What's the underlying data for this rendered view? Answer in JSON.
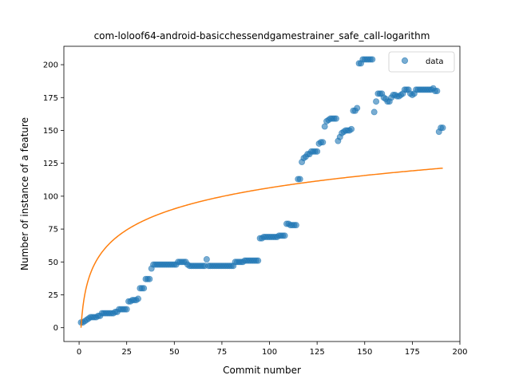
{
  "chart_data": {
    "type": "scatter",
    "title": "com-loloof64-android-basicchessendgamestrainer_safe_call-logarithm",
    "xlabel": "Commit number",
    "ylabel": "Number of instance of a feature",
    "xlim": [
      -8,
      200
    ],
    "ylim": [
      -10.5,
      214
    ],
    "xticks": [
      0,
      25,
      50,
      75,
      100,
      125,
      150,
      175,
      200
    ],
    "yticks": [
      0,
      25,
      50,
      75,
      100,
      125,
      150,
      175,
      200
    ],
    "legend": {
      "position": "top-right",
      "entries": [
        "data"
      ]
    },
    "colors": {
      "scatter": "#1f77b4",
      "fit": "#ff7f0e"
    },
    "series": [
      {
        "name": "data",
        "kind": "scatter",
        "x": [
          1,
          2,
          3,
          4,
          5,
          6,
          7,
          8,
          9,
          10,
          11,
          12,
          13,
          14,
          15,
          16,
          17,
          18,
          19,
          20,
          21,
          22,
          23,
          24,
          25,
          26,
          27,
          28,
          29,
          30,
          31,
          32,
          33,
          34,
          35,
          36,
          37,
          38,
          39,
          40,
          41,
          42,
          43,
          44,
          45,
          46,
          47,
          48,
          49,
          50,
          51,
          52,
          53,
          54,
          55,
          56,
          57,
          58,
          59,
          60,
          61,
          62,
          63,
          64,
          65,
          66,
          67,
          68,
          69,
          70,
          71,
          72,
          73,
          74,
          75,
          76,
          77,
          78,
          79,
          80,
          81,
          82,
          83,
          84,
          85,
          86,
          87,
          88,
          89,
          90,
          91,
          92,
          93,
          94,
          95,
          96,
          97,
          98,
          99,
          100,
          101,
          102,
          103,
          104,
          105,
          106,
          107,
          108,
          109,
          110,
          111,
          112,
          113,
          114,
          115,
          116,
          117,
          118,
          119,
          120,
          121,
          122,
          123,
          124,
          125,
          126,
          127,
          128,
          129,
          130,
          131,
          132,
          133,
          134,
          135,
          136,
          137,
          138,
          139,
          140,
          141,
          142,
          143,
          144,
          145,
          146,
          147,
          148,
          149,
          150,
          151,
          152,
          153,
          154,
          155,
          156,
          157,
          158,
          159,
          160,
          161,
          162,
          163,
          164,
          165,
          166,
          167,
          168,
          169,
          170,
          171,
          172,
          173,
          174,
          175,
          176,
          177,
          178,
          179,
          180,
          181,
          182,
          183,
          184,
          185,
          186,
          187,
          188,
          189,
          190,
          191
        ],
        "y": [
          4,
          4,
          5,
          6,
          7,
          8,
          8,
          8,
          8,
          9,
          9,
          11,
          11,
          11,
          11,
          11,
          11,
          11,
          12,
          12,
          14,
          14,
          14,
          14,
          14,
          20,
          20,
          21,
          21,
          21,
          22,
          30,
          30,
          30,
          37,
          37,
          37,
          45,
          48,
          48,
          48,
          48,
          48,
          48,
          48,
          48,
          48,
          48,
          48,
          48,
          48,
          50,
          50,
          50,
          50,
          50,
          48,
          47,
          47,
          47,
          47,
          47,
          47,
          47,
          47,
          47,
          52,
          47,
          47,
          47,
          47,
          47,
          47,
          47,
          47,
          47,
          47,
          47,
          47,
          47,
          47,
          50,
          50,
          50,
          50,
          50,
          51,
          51,
          51,
          51,
          51,
          51,
          51,
          51,
          68,
          68,
          69,
          69,
          69,
          69,
          69,
          69,
          69,
          69,
          70,
          70,
          70,
          70,
          79,
          79,
          78,
          78,
          78,
          78,
          113,
          113,
          126,
          129,
          130,
          132,
          132,
          134,
          134,
          134,
          134,
          140,
          141,
          141,
          153,
          157,
          158,
          159,
          159,
          159,
          159,
          142,
          145,
          148,
          149,
          150,
          150,
          150,
          151,
          165,
          165,
          167,
          201,
          201,
          204,
          204,
          204,
          204,
          204,
          204,
          164,
          172,
          178,
          178,
          178,
          175,
          174,
          172,
          172,
          175,
          177,
          177,
          176,
          176,
          177,
          178,
          181,
          181,
          181,
          178,
          177,
          178,
          181,
          181,
          181,
          181,
          181,
          181,
          181,
          181,
          181,
          182,
          180,
          180,
          149,
          152,
          152
        ]
      },
      {
        "name": "",
        "kind": "line",
        "model": "a + b*ln(x)",
        "a": 0,
        "b": 23.1,
        "x_range": [
          1,
          191
        ]
      }
    ]
  }
}
